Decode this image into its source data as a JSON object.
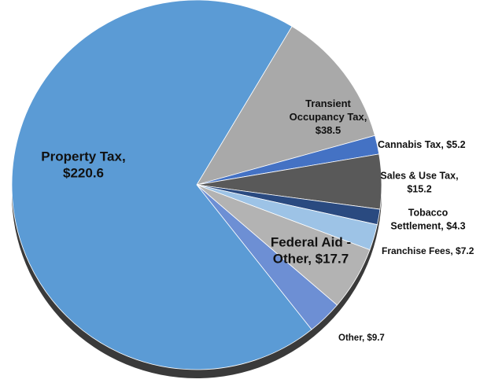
{
  "chart_data": {
    "type": "pie",
    "values": [
      38.5,
      5.2,
      15.2,
      4.3,
      7.2,
      17.7,
      9.7,
      220.6
    ],
    "value_labels": [
      [
        "Transient",
        "Occupancy Tax,",
        "$38.5"
      ],
      [
        "Cannabis Tax, $5.2"
      ],
      [
        "Sales & Use Tax,",
        "$15.2"
      ],
      [
        "Tobacco",
        "Settlement, $4.3"
      ],
      [
        "Franchise Fees, $7.2"
      ],
      [
        "Federal Aid -",
        "Other, $17.7"
      ],
      [
        "Other, $9.7"
      ],
      [
        "Property Tax,",
        "$220.6"
      ]
    ],
    "colors": [
      "#a9a9a9",
      "#4472c4",
      "#595959",
      "#2a4a80",
      "#9dc3e6",
      "#b3b3b3",
      "#6d8fd4",
      "#5b9bd5"
    ]
  }
}
